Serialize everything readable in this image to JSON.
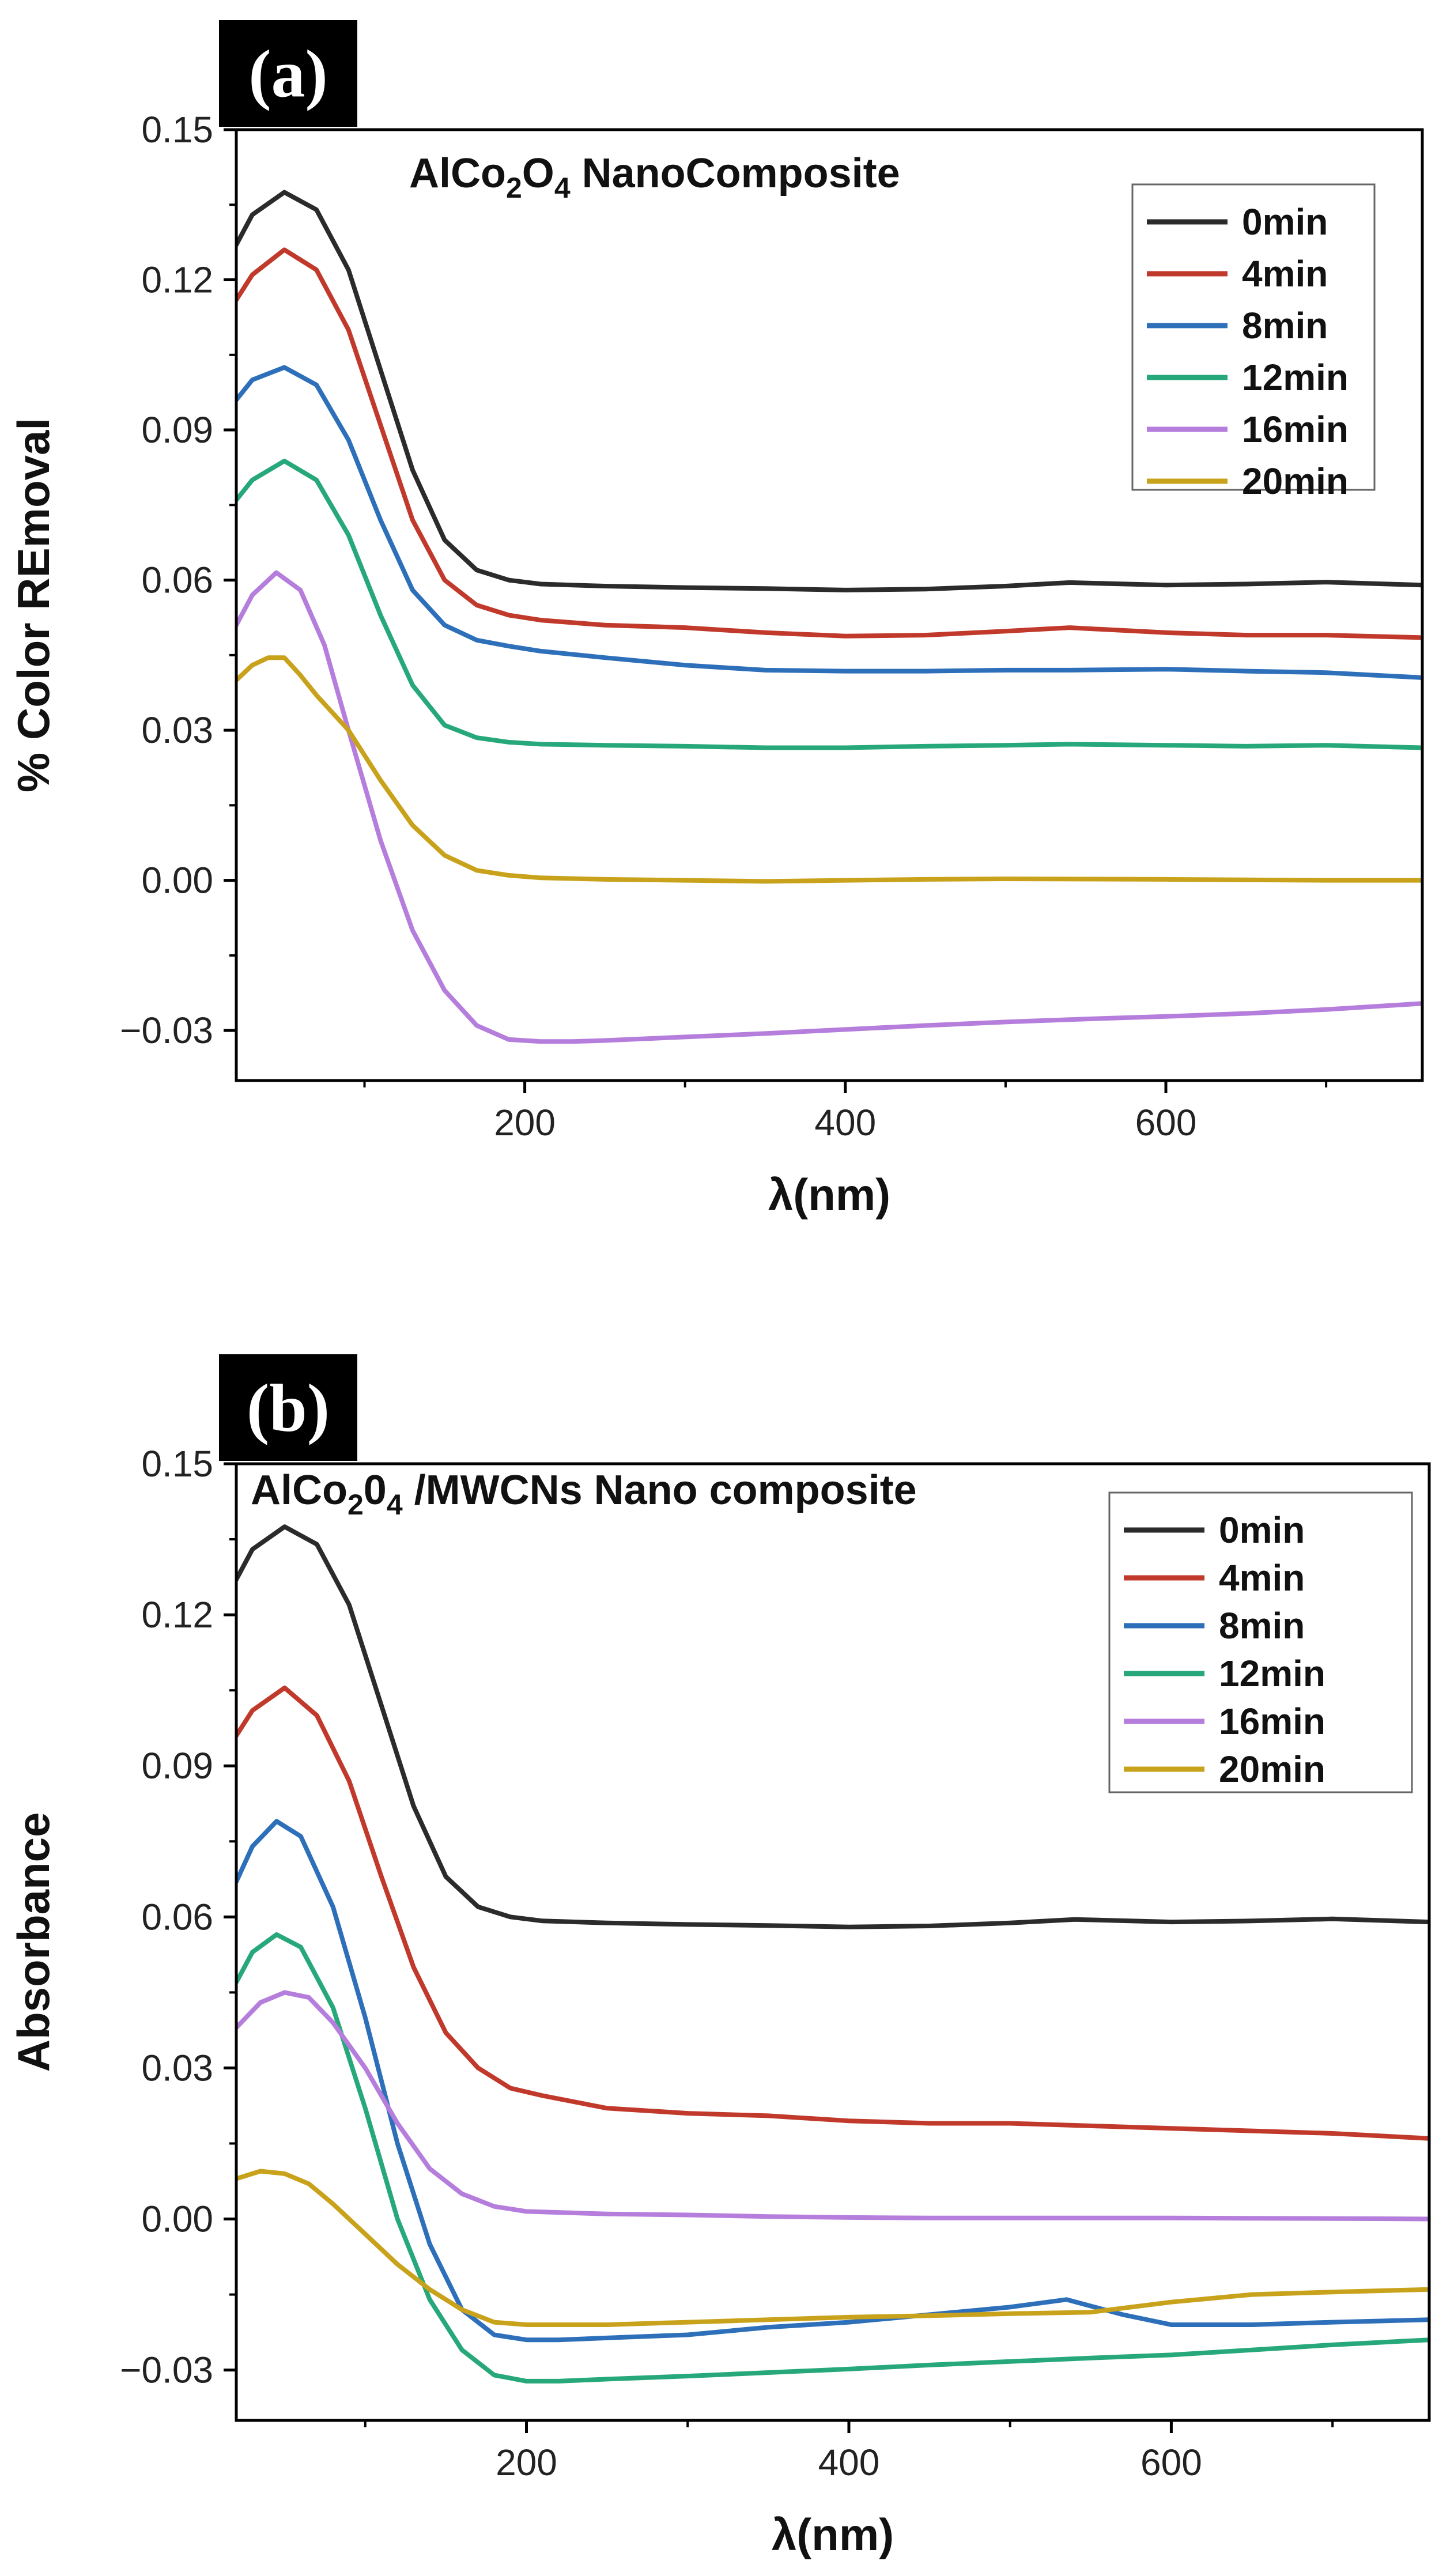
{
  "chart_data": [
    {
      "type": "line",
      "panel_label": "(a)",
      "annotation_parts": [
        "AlCo",
        "2",
        "O",
        "4",
        " NanoComposite"
      ],
      "xlabel": "λ(nm)",
      "ylabel": "% Color REmoval",
      "xlim": [
        20,
        760
      ],
      "ylim": [
        -0.04,
        0.15
      ],
      "xticks": [
        200,
        400,
        600
      ],
      "xtick_labels": [
        "200",
        "400",
        "600"
      ],
      "yticks": [
        -0.03,
        0.0,
        0.03,
        0.06,
        0.09,
        0.12,
        0.15
      ],
      "ytick_labels": [
        "−0.03",
        "0.00",
        "0.03",
        "0.06",
        "0.09",
        "0.12",
        "0.15"
      ],
      "legend_position": "top-right",
      "series": [
        {
          "name": "0min",
          "color": "#2b2b2b",
          "x": [
            20,
            30,
            50,
            70,
            90,
            110,
            130,
            150,
            170,
            190,
            210,
            250,
            300,
            350,
            400,
            450,
            500,
            540,
            600,
            650,
            700,
            760
          ],
          "y": [
            0.127,
            0.133,
            0.1375,
            0.134,
            0.122,
            0.102,
            0.082,
            0.068,
            0.062,
            0.06,
            0.0592,
            0.0588,
            0.0585,
            0.0583,
            0.058,
            0.0582,
            0.0588,
            0.0595,
            0.059,
            0.0592,
            0.0596,
            0.059
          ]
        },
        {
          "name": "4min",
          "color": "#c0392b",
          "x": [
            20,
            30,
            50,
            70,
            90,
            110,
            130,
            150,
            170,
            190,
            210,
            250,
            300,
            350,
            400,
            450,
            500,
            540,
            600,
            650,
            700,
            760
          ],
          "y": [
            0.116,
            0.121,
            0.126,
            0.122,
            0.11,
            0.091,
            0.072,
            0.06,
            0.055,
            0.053,
            0.052,
            0.051,
            0.0505,
            0.0495,
            0.0488,
            0.049,
            0.0498,
            0.0505,
            0.0495,
            0.049,
            0.049,
            0.0485
          ]
        },
        {
          "name": "8min",
          "color": "#2e6fba",
          "x": [
            20,
            30,
            50,
            70,
            90,
            110,
            130,
            150,
            170,
            190,
            210,
            250,
            300,
            350,
            400,
            450,
            500,
            540,
            600,
            650,
            700,
            760
          ],
          "y": [
            0.096,
            0.1,
            0.1025,
            0.099,
            0.088,
            0.072,
            0.058,
            0.051,
            0.048,
            0.0468,
            0.0458,
            0.0445,
            0.043,
            0.042,
            0.0418,
            0.0418,
            0.042,
            0.042,
            0.0422,
            0.0418,
            0.0415,
            0.0405
          ]
        },
        {
          "name": "12min",
          "color": "#27a87a",
          "x": [
            20,
            30,
            50,
            70,
            90,
            110,
            130,
            150,
            170,
            190,
            210,
            250,
            300,
            350,
            400,
            450,
            500,
            540,
            600,
            650,
            700,
            760
          ],
          "y": [
            0.076,
            0.08,
            0.0838,
            0.08,
            0.069,
            0.053,
            0.039,
            0.031,
            0.0285,
            0.0276,
            0.0272,
            0.027,
            0.0268,
            0.0265,
            0.0265,
            0.0268,
            0.027,
            0.0272,
            0.027,
            0.0268,
            0.027,
            0.0265
          ]
        },
        {
          "name": "16min",
          "color": "#b57edc",
          "x": [
            20,
            30,
            45,
            60,
            75,
            90,
            110,
            130,
            150,
            170,
            190,
            210,
            230,
            250,
            300,
            350,
            400,
            450,
            500,
            550,
            600,
            650,
            700,
            760
          ],
          "y": [
            0.051,
            0.057,
            0.0615,
            0.058,
            0.047,
            0.03,
            0.008,
            -0.01,
            -0.022,
            -0.029,
            -0.0318,
            -0.0322,
            -0.0322,
            -0.032,
            -0.0313,
            -0.0306,
            -0.0298,
            -0.029,
            -0.0283,
            -0.0277,
            -0.0272,
            -0.0266,
            -0.0258,
            -0.0246
          ]
        },
        {
          "name": "20min",
          "color": "#c9a21b",
          "x": [
            20,
            30,
            40,
            50,
            60,
            70,
            90,
            110,
            130,
            150,
            170,
            190,
            210,
            250,
            300,
            350,
            400,
            450,
            500,
            600,
            700,
            760
          ],
          "y": [
            0.04,
            0.043,
            0.0445,
            0.0445,
            0.041,
            0.037,
            0.03,
            0.02,
            0.011,
            0.005,
            0.002,
            0.001,
            0.0005,
            0.0002,
            0.0,
            -0.0002,
            0.0,
            0.0002,
            0.0003,
            0.0002,
            0.0,
            0.0
          ]
        }
      ]
    },
    {
      "type": "line",
      "panel_label": "(b)",
      "annotation_parts": [
        "AlCo",
        "2",
        "0",
        "4",
        " /MWCNs Nano composite"
      ],
      "xlabel": "λ(nm)",
      "ylabel": "Absorbance",
      "xlim": [
        20,
        760
      ],
      "ylim": [
        -0.04,
        0.15
      ],
      "xticks": [
        200,
        400,
        600
      ],
      "xtick_labels": [
        "200",
        "400",
        "600"
      ],
      "yticks": [
        -0.03,
        0.0,
        0.03,
        0.06,
        0.09,
        0.12,
        0.15
      ],
      "ytick_labels": [
        "−0.03",
        "0.00",
        "0.03",
        "0.06",
        "0.09",
        "0.12",
        "0.15"
      ],
      "legend_position": "top-right",
      "series": [
        {
          "name": "0min",
          "color": "#2b2b2b",
          "x": [
            20,
            30,
            50,
            70,
            90,
            110,
            130,
            150,
            170,
            190,
            210,
            250,
            300,
            350,
            400,
            450,
            500,
            540,
            600,
            650,
            700,
            760
          ],
          "y": [
            0.127,
            0.133,
            0.1375,
            0.134,
            0.122,
            0.102,
            0.082,
            0.068,
            0.062,
            0.06,
            0.0592,
            0.0588,
            0.0585,
            0.0583,
            0.058,
            0.0582,
            0.0588,
            0.0595,
            0.059,
            0.0592,
            0.0596,
            0.059
          ]
        },
        {
          "name": "4min",
          "color": "#c0392b",
          "x": [
            20,
            30,
            50,
            70,
            90,
            110,
            130,
            150,
            170,
            190,
            210,
            250,
            300,
            350,
            400,
            450,
            500,
            550,
            600,
            650,
            700,
            760
          ],
          "y": [
            0.096,
            0.101,
            0.1055,
            0.1,
            0.087,
            0.068,
            0.05,
            0.037,
            0.03,
            0.026,
            0.0245,
            0.022,
            0.021,
            0.0205,
            0.0195,
            0.019,
            0.019,
            0.0185,
            0.018,
            0.0175,
            0.017,
            0.016
          ]
        },
        {
          "name": "8min",
          "color": "#2e6fba",
          "x": [
            20,
            30,
            45,
            60,
            80,
            100,
            120,
            140,
            160,
            180,
            200,
            220,
            260,
            300,
            350,
            400,
            450,
            500,
            535,
            570,
            600,
            650,
            700,
            760
          ],
          "y": [
            0.067,
            0.074,
            0.079,
            0.076,
            0.062,
            0.04,
            0.015,
            -0.005,
            -0.018,
            -0.023,
            -0.024,
            -0.024,
            -0.0235,
            -0.023,
            -0.0215,
            -0.0205,
            -0.019,
            -0.0175,
            -0.016,
            -0.019,
            -0.021,
            -0.021,
            -0.0205,
            -0.02
          ]
        },
        {
          "name": "12min",
          "color": "#27a87a",
          "x": [
            20,
            30,
            45,
            60,
            80,
            100,
            120,
            140,
            160,
            180,
            200,
            220,
            250,
            300,
            350,
            400,
            450,
            500,
            550,
            600,
            650,
            700,
            760
          ],
          "y": [
            0.047,
            0.053,
            0.0565,
            0.054,
            0.042,
            0.022,
            0.0,
            -0.016,
            -0.026,
            -0.031,
            -0.0322,
            -0.0322,
            -0.0318,
            -0.0312,
            -0.0305,
            -0.0298,
            -0.029,
            -0.0283,
            -0.0276,
            -0.027,
            -0.026,
            -0.025,
            -0.024
          ]
        },
        {
          "name": "16min",
          "color": "#b57edc",
          "x": [
            20,
            35,
            50,
            65,
            80,
            100,
            120,
            140,
            160,
            180,
            200,
            250,
            300,
            350,
            400,
            450,
            500,
            600,
            700,
            760
          ],
          "y": [
            0.038,
            0.043,
            0.045,
            0.044,
            0.039,
            0.03,
            0.019,
            0.01,
            0.005,
            0.0025,
            0.0015,
            0.001,
            0.0008,
            0.0005,
            0.0003,
            0.0002,
            0.0002,
            0.0002,
            0.0001,
            0.0
          ]
        },
        {
          "name": "20min",
          "color": "#c9a21b",
          "x": [
            20,
            35,
            50,
            65,
            80,
            100,
            120,
            140,
            160,
            180,
            200,
            250,
            300,
            350,
            400,
            450,
            500,
            550,
            600,
            650,
            700,
            760
          ],
          "y": [
            0.008,
            0.0095,
            0.009,
            0.007,
            0.003,
            -0.003,
            -0.009,
            -0.014,
            -0.018,
            -0.0205,
            -0.021,
            -0.021,
            -0.0205,
            -0.02,
            -0.0195,
            -0.0192,
            -0.0188,
            -0.0185,
            -0.0165,
            -0.015,
            -0.0145,
            -0.014
          ]
        }
      ]
    }
  ]
}
